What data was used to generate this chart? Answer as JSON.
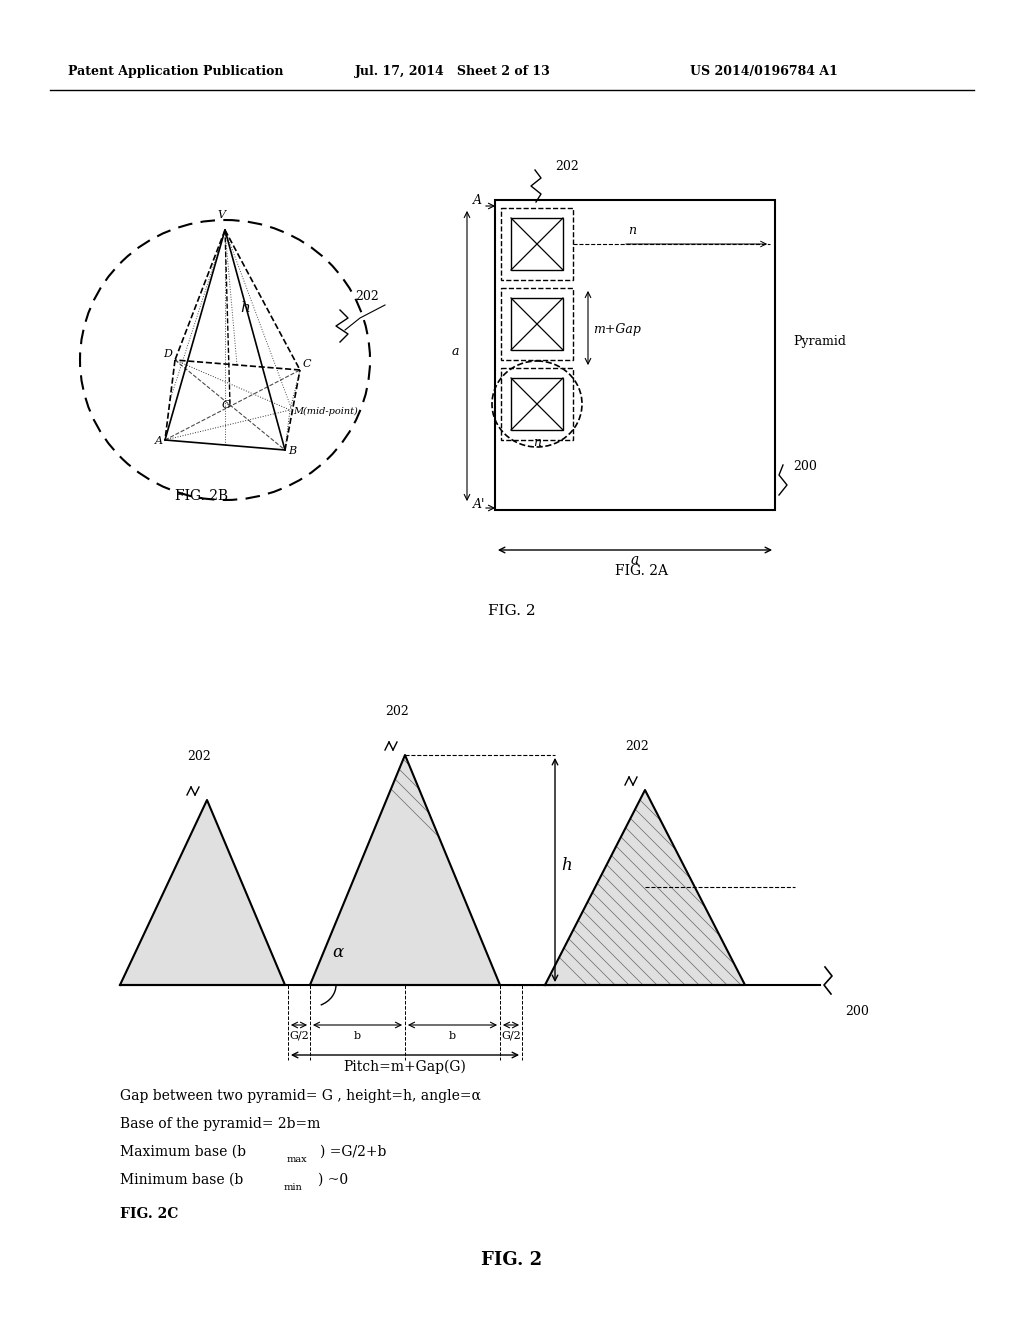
{
  "header_left": "Patent Application Publication",
  "header_mid": "Jul. 17, 2014   Sheet 2 of 13",
  "header_right": "US 2014/0196784 A1",
  "fig2_label": "FIG. 2",
  "fig2a_label": "FIG. 2A",
  "fig2b_label": "FIG. 2B",
  "fig2c_label": "FIG. 2C",
  "bg_color": "#ffffff",
  "line_color": "#000000",
  "text_color": "#000000"
}
